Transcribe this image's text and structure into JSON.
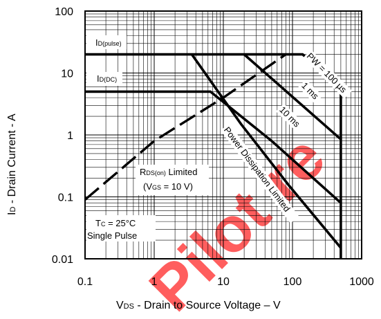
{
  "chart_data": {
    "type": "line",
    "x_scale": "log",
    "y_scale": "log",
    "xlim": [
      0.1,
      1000
    ],
    "ylim": [
      0.01,
      100
    ],
    "x_ticks": [
      "0.1",
      "1",
      "10",
      "100",
      "1000"
    ],
    "y_ticks": [
      "100",
      "10",
      "1",
      "0.1",
      "0.01"
    ],
    "xlabel": {
      "main": "V",
      "sub": "DS",
      "rest": " - Drain to Source Voltage – V"
    },
    "ylabel": {
      "main": "I",
      "sub": "D",
      "rest": " - Drain Current - A"
    },
    "grid": true,
    "series": [
      {
        "name": "PW = 100 µs",
        "style": "solid",
        "points": [
          [
            0.1,
            20
          ],
          [
            140,
            20
          ],
          [
            500,
            6
          ],
          [
            500,
            0.01
          ]
        ]
      },
      {
        "name": "1 ms",
        "style": "solid",
        "points": [
          [
            20,
            20
          ],
          [
            500,
            0.85
          ]
        ]
      },
      {
        "name": "10 ms",
        "style": "solid",
        "points": [
          [
            0.1,
            5
          ],
          [
            6.5,
            5
          ],
          [
            50,
            0.8
          ],
          [
            500,
            0.08
          ]
        ]
      },
      {
        "name": "Power Dissipation Limited",
        "style": "solid",
        "points": [
          [
            3.5,
            20
          ],
          [
            18,
            1.5
          ],
          [
            90,
            0.15
          ],
          [
            500,
            0.015
          ]
        ]
      },
      {
        "name": "RDS(on) Limited",
        "style": "dashed",
        "points": [
          [
            0.1,
            0.09
          ],
          [
            1,
            0.8
          ],
          [
            10,
            4
          ],
          [
            80,
            20
          ]
        ]
      }
    ]
  },
  "annotations": {
    "id_pulse": {
      "main": "I",
      "sub": "D(pulse)"
    },
    "id_dc": {
      "main": "I",
      "sub": "D(DC)"
    },
    "pw": "PW = 100 µs",
    "one_ms": "1 ms",
    "ten_ms": "10 ms",
    "pdl": "Power Dissipation Limited",
    "rds_l1_main": "R",
    "rds_l1_sub": "DS(on)",
    "rds_l1_rest": " Limited",
    "rds_l2_pre": "(V",
    "rds_l2_sub": "GS",
    "rds_l2_rest": " = 10 V)",
    "tc_main": "T",
    "tc_sub": "C",
    "tc_rest": " = 25°C",
    "single_pulse": "Single Pulse"
  },
  "watermark": {
    "text": "Pilot re",
    "color": "#ff3b3b"
  }
}
